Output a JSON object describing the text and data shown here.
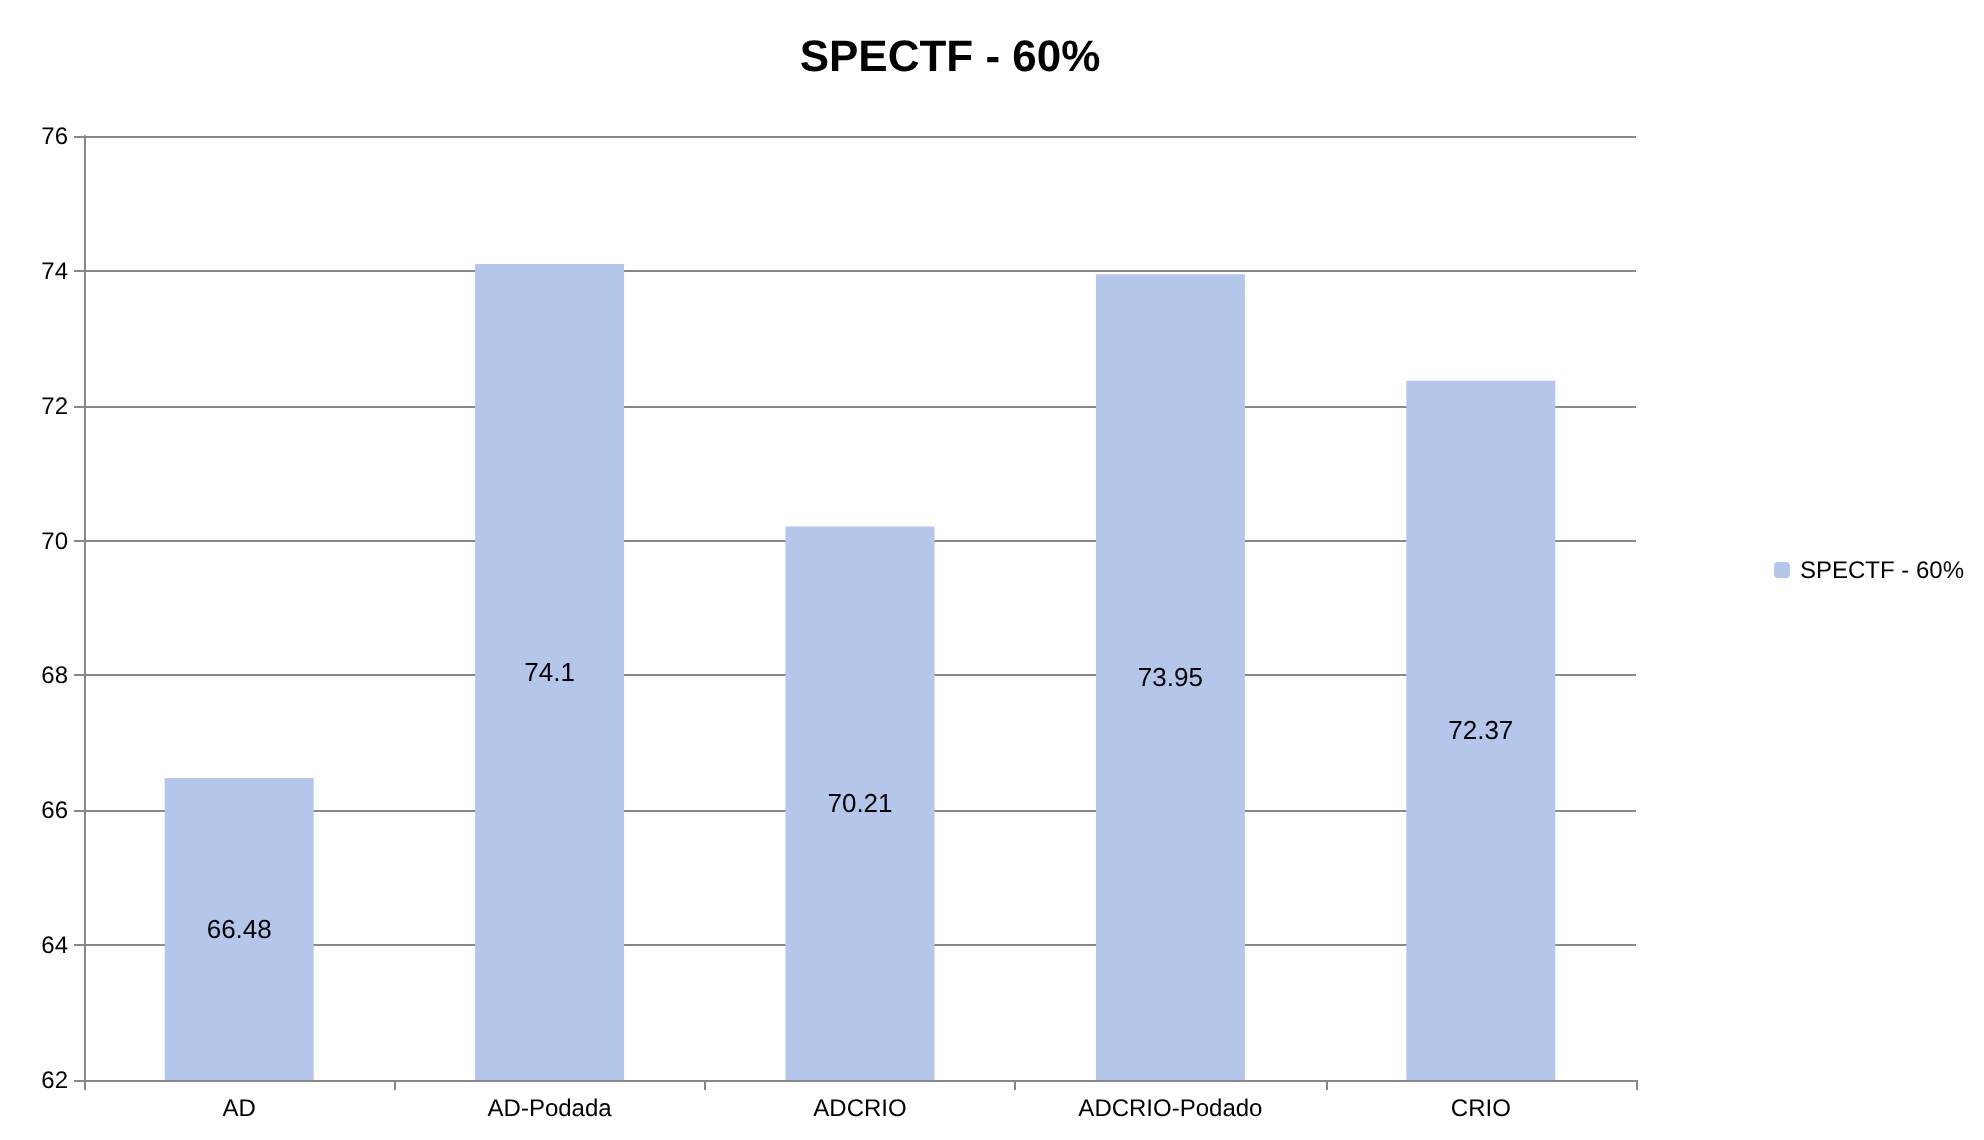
{
  "chart_data": {
    "type": "bar",
    "title": "SPECTF - 60%",
    "categories": [
      "AD",
      "AD-Podada",
      "ADCRIO",
      "ADCRIO-Podado",
      "CRIO"
    ],
    "series": [
      {
        "name": "SPECTF - 60%",
        "color": "#b4c6ea",
        "values": [
          66.48,
          74.1,
          70.21,
          73.95,
          72.37
        ]
      }
    ],
    "ylim": [
      62,
      76
    ],
    "yticks": [
      62,
      64,
      66,
      68,
      70,
      72,
      74,
      76
    ],
    "grid": "y",
    "legend": "right",
    "data_labels": true
  }
}
